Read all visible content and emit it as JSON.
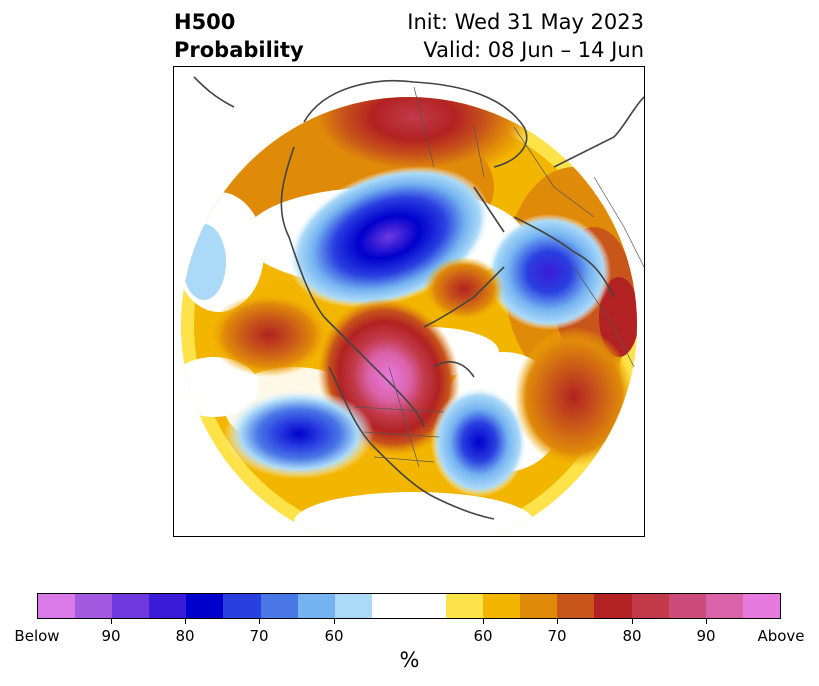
{
  "header": {
    "title_line1": "H500",
    "title_line2": "Probability",
    "init": "Init: Wed 31 May 2023",
    "valid": "Valid: 08 Jun – 14 Jun"
  },
  "colorbar": {
    "label": "%",
    "ticks": [
      "Below",
      "90",
      "80",
      "70",
      "60",
      "60",
      "70",
      "80",
      "90",
      "Above"
    ],
    "colors": [
      "#d97ae8",
      "#a35ae0",
      "#6e3ade",
      "#3a1cd8",
      "#0000cc",
      "#2a3fe0",
      "#4a78e6",
      "#74b2f0",
      "#abdaf8",
      "#ffffff",
      "#fde24a",
      "#f3b600",
      "#e08a0a",
      "#c8551a",
      "#b22222",
      "#c23a4a",
      "#cd4b7a",
      "#da62a8",
      "#e67ade"
    ]
  },
  "colors": {
    "below_max": "#d97ae8",
    "above_max": "#e67ade",
    "coastline": "#444444"
  }
}
